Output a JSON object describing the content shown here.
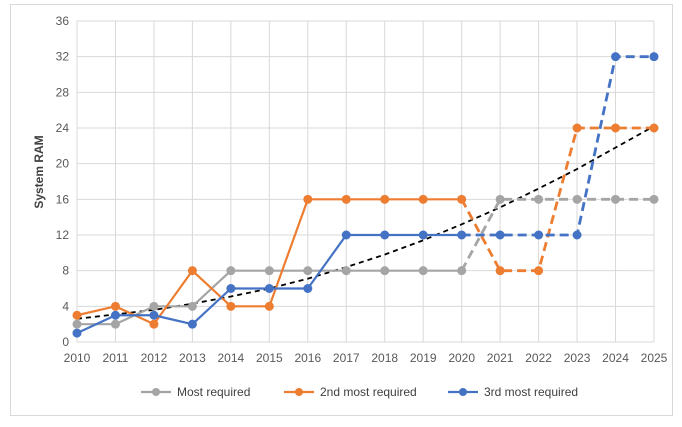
{
  "chart_data": {
    "type": "line",
    "title": "",
    "xlabel": "",
    "ylabel": "System RAM",
    "ylim": [
      0,
      36
    ],
    "yticks": [
      0,
      4,
      8,
      12,
      16,
      20,
      24,
      28,
      32,
      36
    ],
    "x": [
      2010,
      2011,
      2012,
      2013,
      2014,
      2015,
      2016,
      2017,
      2018,
      2019,
      2020,
      2021,
      2022,
      2023,
      2024,
      2025
    ],
    "grid": true,
    "legend_position": "bottom",
    "series": [
      {
        "name": "Most required",
        "color": "#a5a5a5",
        "values": [
          2,
          2,
          4,
          4,
          8,
          8,
          8,
          8,
          8,
          8,
          8,
          16,
          16,
          16,
          16,
          16
        ],
        "dashed_from": 2020
      },
      {
        "name": "2nd most required",
        "color": "#ed7d31",
        "values": [
          3,
          4,
          2,
          8,
          4,
          4,
          16,
          16,
          16,
          16,
          16,
          8,
          8,
          24,
          24,
          24
        ],
        "dashed_from": 2020
      },
      {
        "name": "3rd most required",
        "color": "#4472c4",
        "values": [
          1,
          3,
          3,
          2,
          6,
          6,
          6,
          12,
          12,
          12,
          12,
          12,
          12,
          12,
          32,
          32
        ],
        "dashed_from": 2020
      }
    ],
    "trendline": {
      "style": "dashed",
      "color": "#000000",
      "values": [
        2.6,
        3.1,
        3.6,
        4.3,
        5.1,
        6.0,
        7.1,
        8.4,
        9.8,
        11.4,
        13.2,
        15.1,
        17.2,
        19.4,
        21.8,
        24.2
      ]
    }
  }
}
